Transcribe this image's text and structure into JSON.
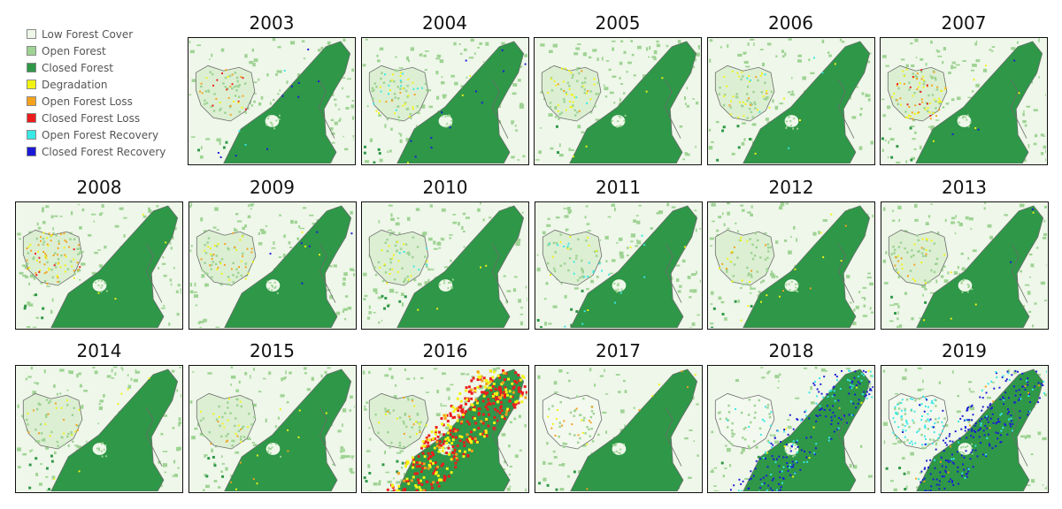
{
  "legend": [
    {
      "label": "Low Forest Cover",
      "color": "#eef7e9"
    },
    {
      "label": "Open Forest",
      "color": "#9fd394"
    },
    {
      "label": "Closed Forest",
      "color": "#2e9748"
    },
    {
      "label": "Degradation",
      "color": "#f3f313"
    },
    {
      "label": "Open Forest Loss",
      "color": "#f4a11c"
    },
    {
      "label": "Closed Forest Loss",
      "color": "#ec1c1c"
    },
    {
      "label": "Open Forest Recovery",
      "color": "#38e8e6"
    },
    {
      "label": "Closed Forest Recovery",
      "color": "#1a1ad6"
    }
  ],
  "panels": [
    {
      "year": "2003"
    },
    {
      "year": "2004"
    },
    {
      "year": "2005"
    },
    {
      "year": "2006"
    },
    {
      "year": "2007"
    },
    {
      "year": "2008"
    },
    {
      "year": "2009"
    },
    {
      "year": "2010"
    },
    {
      "year": "2011"
    },
    {
      "year": "2012"
    },
    {
      "year": "2013"
    },
    {
      "year": "2014"
    },
    {
      "year": "2015"
    },
    {
      "year": "2016"
    },
    {
      "year": "2017"
    },
    {
      "year": "2018"
    },
    {
      "year": "2019"
    }
  ]
}
